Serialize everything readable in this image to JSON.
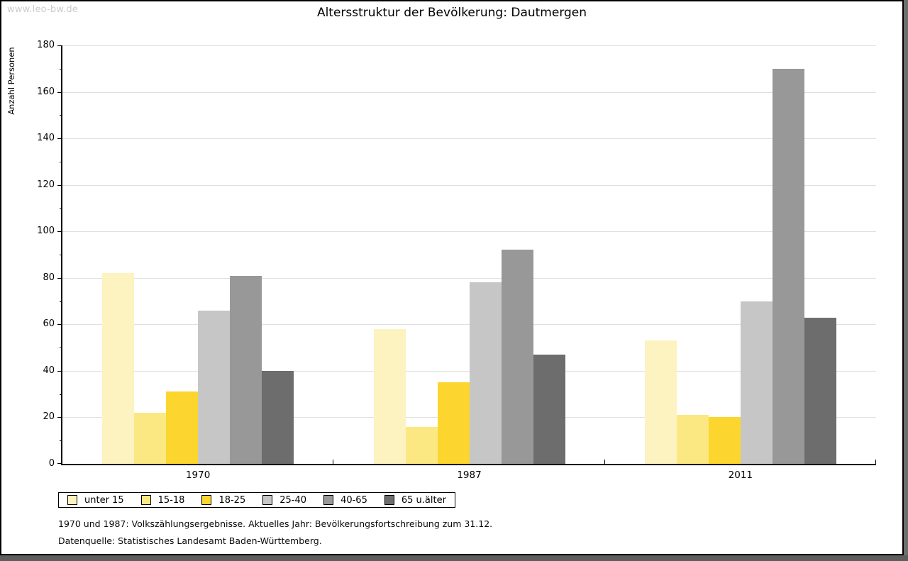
{
  "watermark": "www.leo-bw.de",
  "title": "Altersstruktur der Bevölkerung: Dautmergen",
  "footnotes": {
    "line1": "1970 und 1987: Volkszählungsergebnisse. Aktuelles Jahr: Bevölkerungsfortschreibung zum 31.12.",
    "line2": "Datenquelle: Statistisches Landesamt Baden-Württemberg."
  },
  "chart_data": {
    "type": "bar",
    "title": "Altersstruktur der Bevölkerung: Dautmergen",
    "categories": [
      "1970",
      "1987",
      "2011"
    ],
    "series": [
      {
        "name": "unter 15",
        "color": "#FCF3C0",
        "values": [
          82,
          58,
          53
        ]
      },
      {
        "name": "15-18",
        "color": "#FCE883",
        "values": [
          22,
          16,
          21
        ]
      },
      {
        "name": "18-25",
        "color": "#FCD62F",
        "values": [
          31,
          35,
          20
        ]
      },
      {
        "name": "25-40",
        "color": "#C6C6C6",
        "values": [
          66,
          78,
          70
        ]
      },
      {
        "name": "40-65",
        "color": "#989898",
        "values": [
          81,
          92,
          170
        ]
      },
      {
        "name": "65 u.älter",
        "color": "#6D6D6D",
        "values": [
          40,
          47,
          63
        ]
      }
    ],
    "xlabel": "",
    "ylabel": "Anzahl Personen",
    "ylim": [
      0,
      180
    ],
    "ytick_step": 20,
    "yminor_step": 10,
    "grid": true,
    "legend_position": "bottom-left",
    "gridline_color": "#e0e0e0"
  }
}
